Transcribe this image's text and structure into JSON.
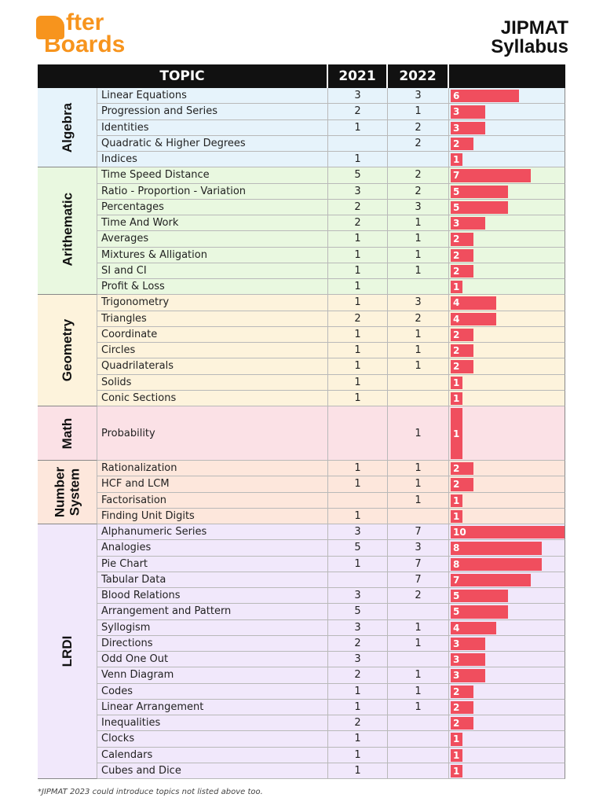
{
  "logo": {
    "line1": "fter",
    "line2": "Boards"
  },
  "title": {
    "line1": "JIPMAT",
    "line2": "Syllabus"
  },
  "columns": {
    "topic": "TOPIC",
    "year1": "2021",
    "year2": "2022"
  },
  "groups": [
    {
      "name": "Algebra",
      "rows": [
        {
          "topic": "Linear Equations",
          "y2021": 3,
          "y2022": 3,
          "total": 6
        },
        {
          "topic": "Progression and Series",
          "y2021": 2,
          "y2022": 1,
          "total": 3
        },
        {
          "topic": "Identities",
          "y2021": 1,
          "y2022": 2,
          "total": 3
        },
        {
          "topic": "Quadratic & Higher Degrees",
          "y2021": null,
          "y2022": 2,
          "total": 2
        },
        {
          "topic": "Indices",
          "y2021": 1,
          "y2022": null,
          "total": 1
        }
      ]
    },
    {
      "name": "Arithematic",
      "rows": [
        {
          "topic": "Time Speed Distance",
          "y2021": 5,
          "y2022": 2,
          "total": 7
        },
        {
          "topic": "Ratio - Proportion - Variation",
          "y2021": 3,
          "y2022": 2,
          "total": 5
        },
        {
          "topic": "Percentages",
          "y2021": 2,
          "y2022": 3,
          "total": 5
        },
        {
          "topic": "Time And Work",
          "y2021": 2,
          "y2022": 1,
          "total": 3
        },
        {
          "topic": "Averages",
          "y2021": 1,
          "y2022": 1,
          "total": 2
        },
        {
          "topic": "Mixtures & Alligation",
          "y2021": 1,
          "y2022": 1,
          "total": 2
        },
        {
          "topic": "SI and CI",
          "y2021": 1,
          "y2022": 1,
          "total": 2
        },
        {
          "topic": "Profit & Loss",
          "y2021": 1,
          "y2022": null,
          "total": 1
        }
      ]
    },
    {
      "name": "Geometry",
      "rows": [
        {
          "topic": "Trigonometry",
          "y2021": 1,
          "y2022": 3,
          "total": 4
        },
        {
          "topic": "Triangles",
          "y2021": 2,
          "y2022": 2,
          "total": 4
        },
        {
          "topic": "Coordinate",
          "y2021": 1,
          "y2022": 1,
          "total": 2
        },
        {
          "topic": "Circles",
          "y2021": 1,
          "y2022": 1,
          "total": 2
        },
        {
          "topic": "Quadrilaterals",
          "y2021": 1,
          "y2022": 1,
          "total": 2
        },
        {
          "topic": "Solids",
          "y2021": 1,
          "y2022": null,
          "total": 1
        },
        {
          "topic": "Conic Sections",
          "y2021": 1,
          "y2022": null,
          "total": 1
        }
      ]
    },
    {
      "name": "Math",
      "rows": [
        {
          "topic": "Probability",
          "y2021": null,
          "y2022": 1,
          "total": 1
        }
      ]
    },
    {
      "name": "Number System",
      "rows": [
        {
          "topic": "Rationalization",
          "y2021": 1,
          "y2022": 1,
          "total": 2
        },
        {
          "topic": "HCF and LCM",
          "y2021": 1,
          "y2022": 1,
          "total": 2
        },
        {
          "topic": "Factorisation",
          "y2021": null,
          "y2022": 1,
          "total": 1
        },
        {
          "topic": "Finding Unit Digits",
          "y2021": 1,
          "y2022": null,
          "total": 1
        }
      ]
    },
    {
      "name": "LRDI",
      "rows": [
        {
          "topic": "Alphanumeric Series",
          "y2021": 3,
          "y2022": 7,
          "total": 10
        },
        {
          "topic": "Analogies",
          "y2021": 5,
          "y2022": 3,
          "total": 8
        },
        {
          "topic": "Pie Chart",
          "y2021": 1,
          "y2022": 7,
          "total": 8
        },
        {
          "topic": "Tabular Data",
          "y2021": null,
          "y2022": 7,
          "total": 7
        },
        {
          "topic": "Blood Relations",
          "y2021": 3,
          "y2022": 2,
          "total": 5
        },
        {
          "topic": "Arrangement and Pattern",
          "y2021": 5,
          "y2022": null,
          "total": 5
        },
        {
          "topic": "Syllogism",
          "y2021": 3,
          "y2022": 1,
          "total": 4
        },
        {
          "topic": "Directions",
          "y2021": 2,
          "y2022": 1,
          "total": 3
        },
        {
          "topic": "Odd One Out",
          "y2021": 3,
          "y2022": null,
          "total": 3
        },
        {
          "topic": "Venn Diagram",
          "y2021": 2,
          "y2022": 1,
          "total": 3
        },
        {
          "topic": "Codes",
          "y2021": 1,
          "y2022": 1,
          "total": 2
        },
        {
          "topic": "Linear Arrangement",
          "y2021": 1,
          "y2022": 1,
          "total": 2
        },
        {
          "topic": "Inequalities",
          "y2021": 2,
          "y2022": null,
          "total": 2
        },
        {
          "topic": "Clocks",
          "y2021": 1,
          "y2022": null,
          "total": 1
        },
        {
          "topic": "Calendars",
          "y2021": 1,
          "y2022": null,
          "total": 1
        },
        {
          "topic": "Cubes and Dice",
          "y2021": 1,
          "y2022": null,
          "total": 1
        }
      ]
    }
  ],
  "footnote": "*JIPMAT 2023 could introduce topics not listed above too."
}
